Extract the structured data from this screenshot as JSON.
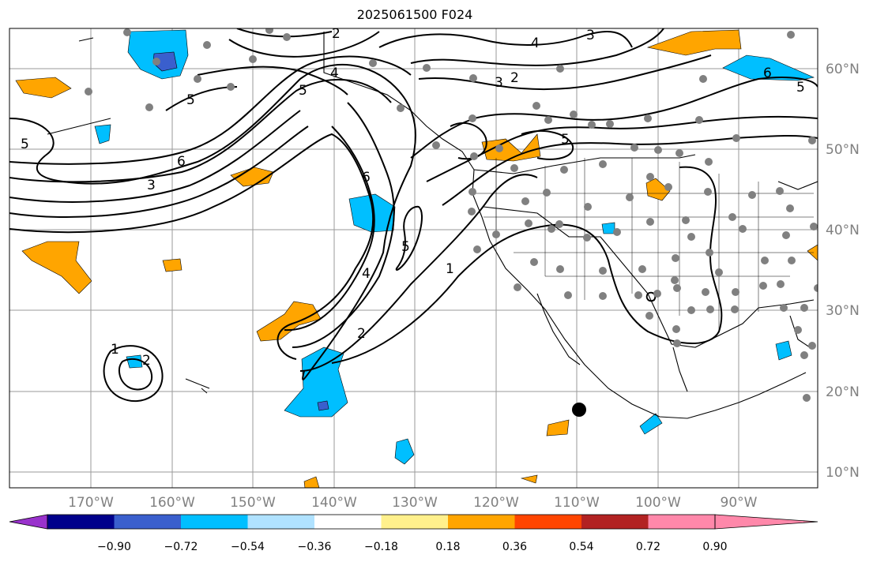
{
  "title": "2025061500 F024",
  "longitude_labels": [
    "170°W",
    "160°W",
    "150°W",
    "140°W",
    "130°W",
    "120°W",
    "110°W",
    "100°W",
    "90°W"
  ],
  "latitude_labels": [
    "60°N",
    "50°N",
    "40°N",
    "30°N",
    "20°N",
    "10°N"
  ],
  "colorbar": {
    "tick_labels": [
      "−0.90",
      "−0.72",
      "−0.54",
      "−0.36",
      "−0.18",
      "0.18",
      "0.36",
      "0.54",
      "0.72",
      "0.90"
    ],
    "colors": [
      "#9932cc",
      "#00008b",
      "#3a5fcd",
      "#00bfff",
      "#b0e2ff",
      "#ffffff",
      "#fff08c",
      "#ffa500",
      "#ff4500",
      "#b22222",
      "#ff88aa"
    ]
  },
  "contour_labels": [
    "2",
    "4",
    "3",
    "2",
    "3",
    "5",
    "4",
    "5",
    "6",
    "5",
    "6",
    "5",
    "3",
    "6",
    "5",
    "4",
    "2",
    "1",
    "5",
    "1",
    "2"
  ]
}
